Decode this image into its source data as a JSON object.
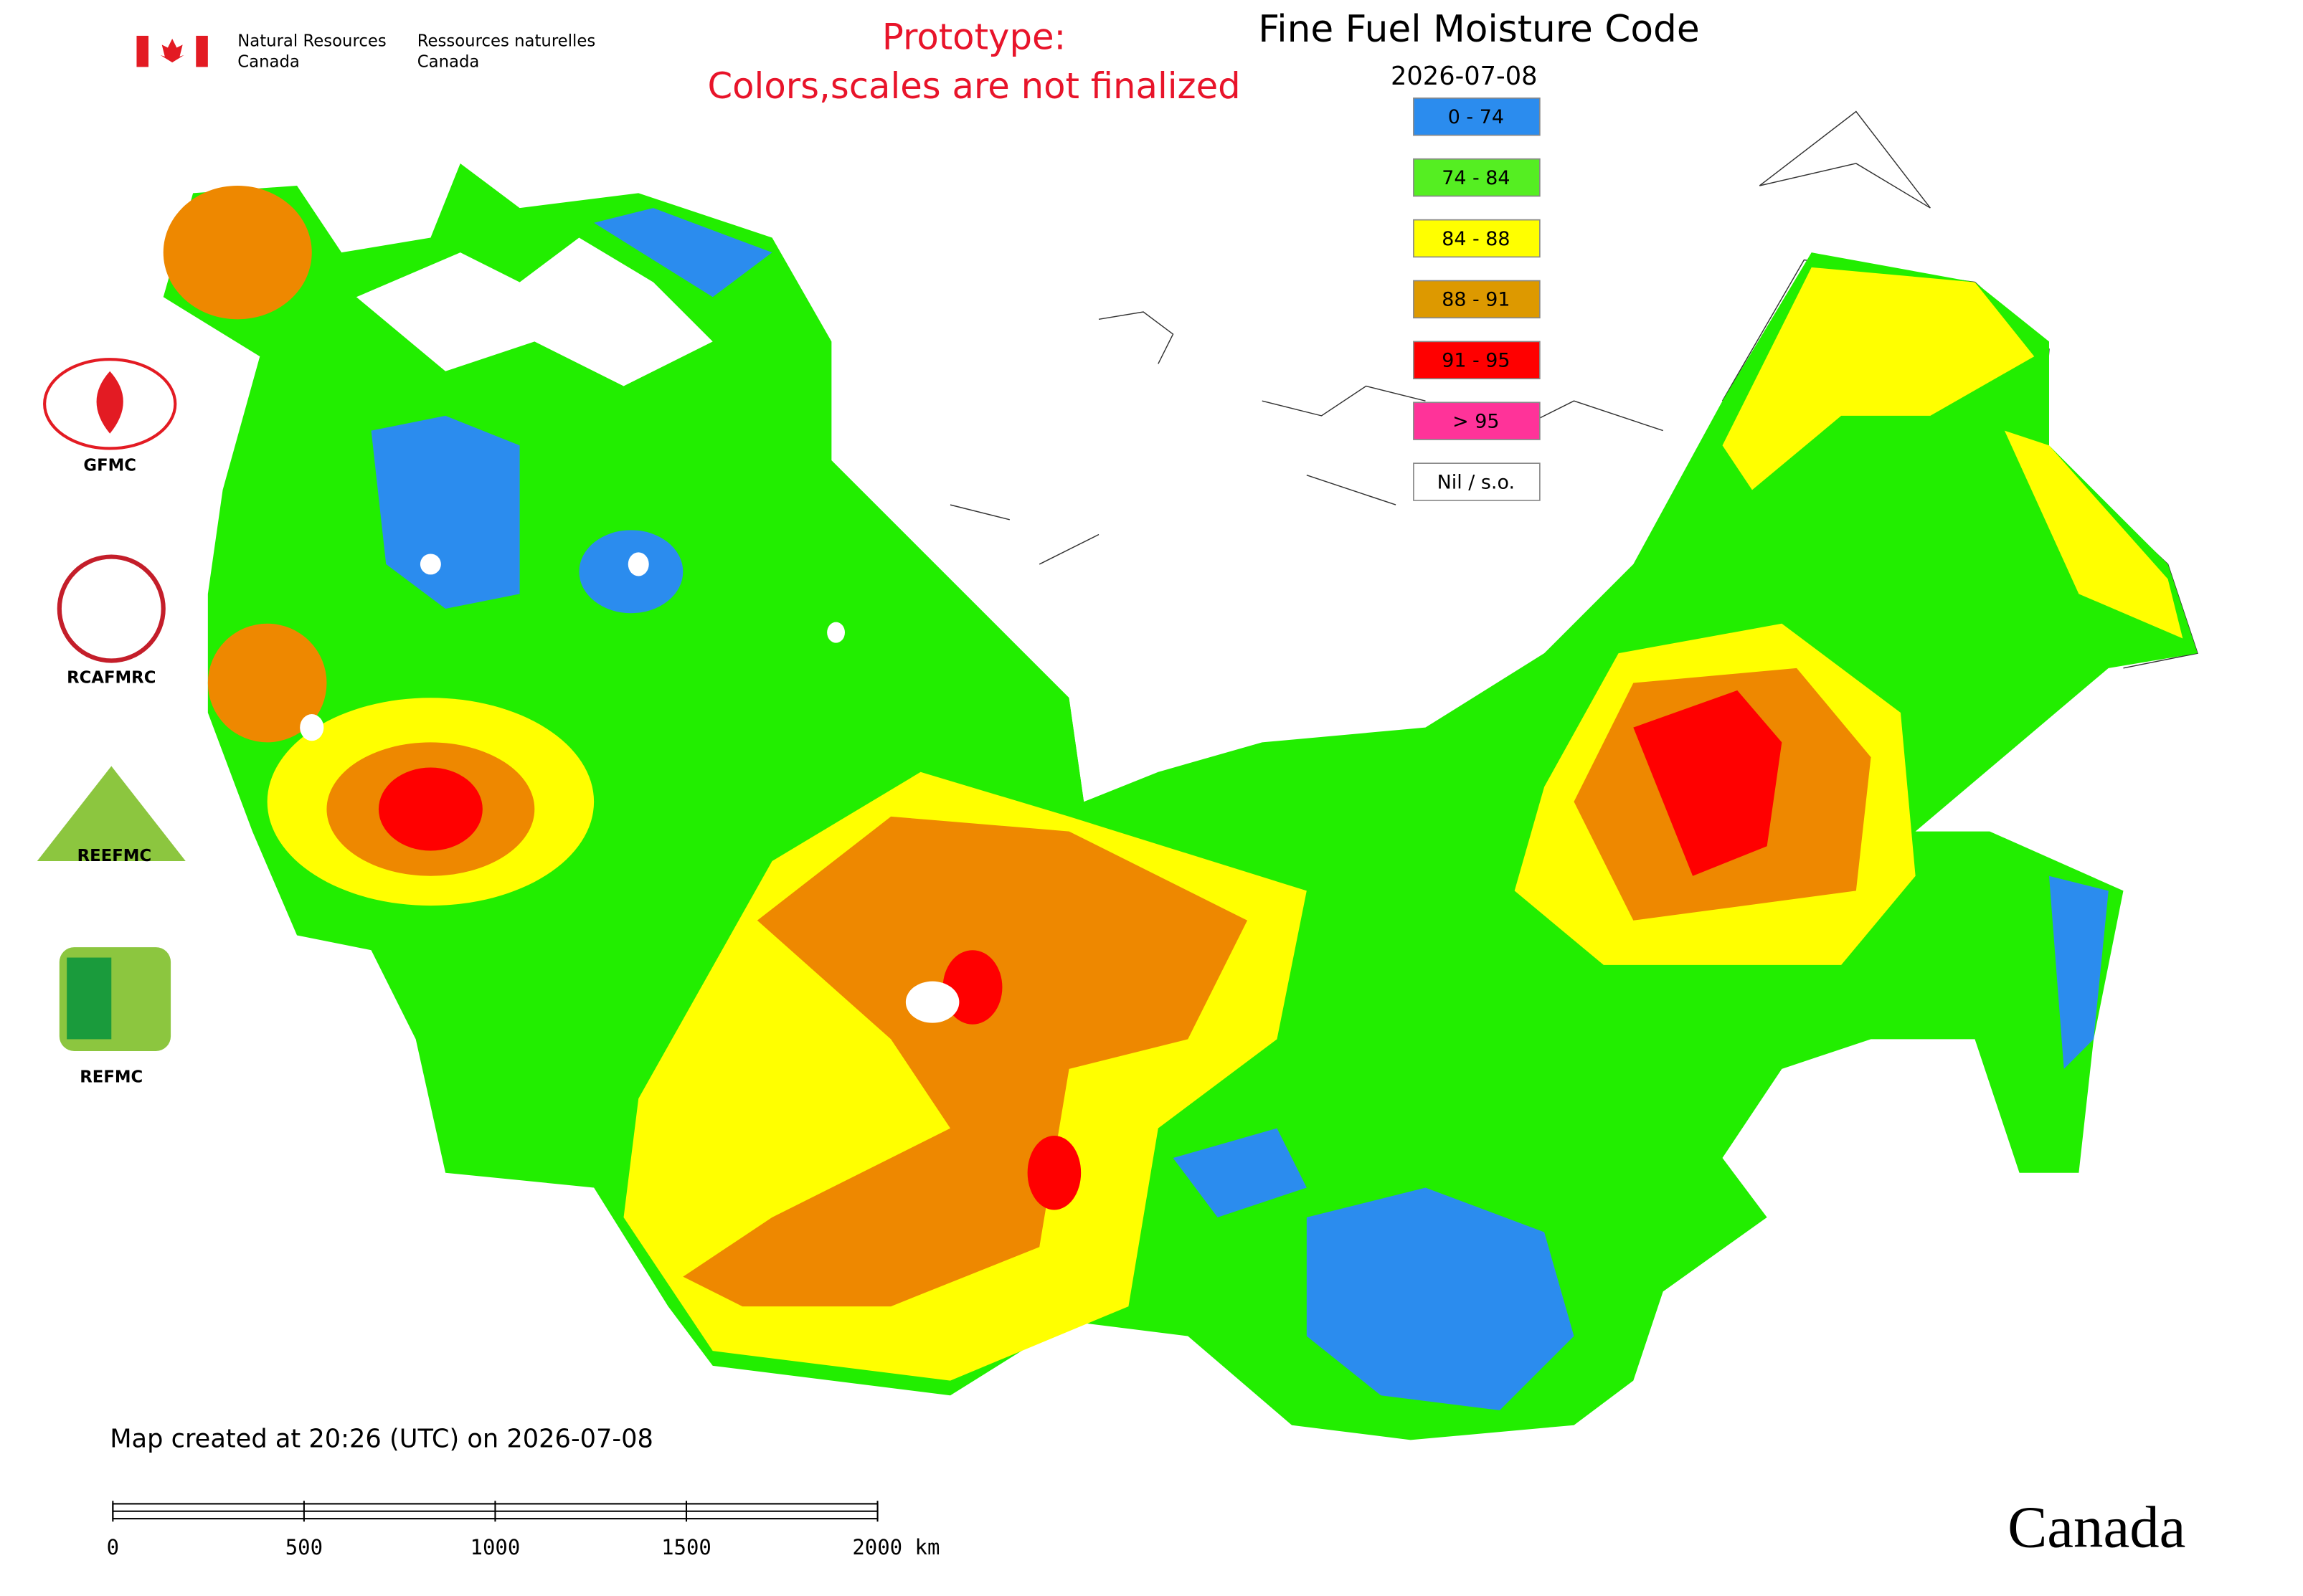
{
  "header": {
    "agency_en": "Natural Resources",
    "agency_en_2": "Canada",
    "agency_fr": "Ressources naturelles",
    "agency_fr_2": "Canada",
    "notice_1": "Prototype:",
    "notice_2": "Colors,scales are not finalized",
    "title": "Fine Fuel Moisture Code",
    "date": "2026-07-08"
  },
  "legend": [
    {
      "label": "0 - 74",
      "color": "#2b8cee"
    },
    {
      "label": "74 - 84",
      "color": "#55ee22"
    },
    {
      "label": "84 - 88",
      "color": "#ffff00"
    },
    {
      "label": "88 - 91",
      "color": "#dd9900"
    },
    {
      "label": "91 - 95",
      "color": "#ff0000"
    },
    {
      "label": "> 95",
      "color": "#ff3399"
    },
    {
      "label": "Nil / s.o.",
      "color": "#ffffff"
    }
  ],
  "logos": [
    "GFMC",
    "RCAFMRC",
    "REEFMC",
    "REFMC"
  ],
  "footer": {
    "created": "Map created at 20:26 (UTC) on 2026-07-08",
    "wordmark": "Canada"
  },
  "scale_bar": {
    "xlim": [
      0,
      2000
    ],
    "ticks": [
      0,
      500,
      1000,
      1500,
      {
        "value": 2000,
        "label": "2000 km"
      }
    ]
  }
}
